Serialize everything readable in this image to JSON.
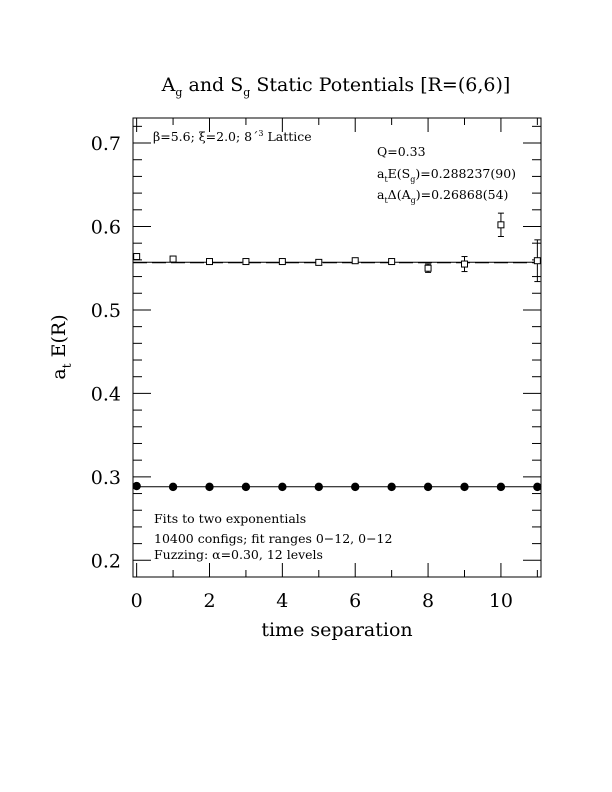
{
  "chart_data": {
    "type": "scatter",
    "title": "A_g and S_g Static Potentials [R=(6,6)]",
    "title_parts": {
      "a": "A",
      "a_sub": "g",
      "mid": " and S",
      "s_sub": "g",
      "rest": " Static Potentials [R=(6,6)]"
    },
    "xlabel": "time separation",
    "ylabel": "a_t E(R)",
    "ylabel_parts": {
      "a": "a",
      "sub": "t",
      "rest": " E(R)"
    },
    "xlim": [
      -0.1,
      11.1
    ],
    "ylim": [
      0.18,
      0.73
    ],
    "xticks": [
      0,
      2,
      4,
      6,
      8,
      10
    ],
    "xtick_labels": [
      "0",
      "2",
      "4",
      "6",
      "8",
      "10"
    ],
    "yticks": [
      0.2,
      0.3,
      0.4,
      0.5,
      0.6,
      0.7
    ],
    "ytick_labels": [
      "0.2",
      "0.3",
      "0.4",
      "0.5",
      "0.6",
      "0.7"
    ],
    "grid": false,
    "series": [
      {
        "marker": "open-square",
        "x": [
          0,
          1,
          2,
          3,
          4,
          5,
          6,
          7,
          8,
          9,
          10,
          11
        ],
        "y": [
          0.564,
          0.561,
          0.558,
          0.558,
          0.558,
          0.557,
          0.559,
          0.558,
          0.55,
          0.555,
          0.602,
          0.559
        ],
        "err": [
          0.002,
          0.002,
          0.002,
          0.002,
          0.002,
          0.002,
          0.003,
          0.003,
          0.005,
          0.009,
          0.014,
          0.025
        ]
      },
      {
        "marker": "filled-circle",
        "x": [
          0,
          1,
          2,
          3,
          4,
          5,
          6,
          7,
          8,
          9,
          10,
          11
        ],
        "y": [
          0.289,
          0.288,
          0.288,
          0.288,
          0.288,
          0.288,
          0.288,
          0.288,
          0.288,
          0.288,
          0.288,
          0.288
        ],
        "err": [
          0.001,
          0.001,
          0.001,
          0.001,
          0.001,
          0.001,
          0.001,
          0.001,
          0.001,
          0.001,
          0.001,
          0.001
        ]
      }
    ],
    "fit_lines": [
      {
        "style": "solid",
        "y": 0.5571
      },
      {
        "style": "dashed",
        "y": 0.5566
      },
      {
        "style": "solid",
        "y": 0.2882
      }
    ],
    "annotations": {
      "lattice": "β=5.6; ξ=2.0; 8´3 Lattice",
      "lattice_parts": {
        "pre": "β=5.6; ξ=2.0; 8´",
        "sup": "3",
        "post": " Lattice"
      },
      "q": "Q=0.33",
      "energy": "a_tE(S_g)=0.288237(90)",
      "energy_parts": {
        "a": "a",
        "a_sub": "t",
        "mid": "E(S",
        "s_sub": "g",
        "post": ")=0.288237(90)"
      },
      "gap": "a_tΔ(A_g)=0.26868(54)",
      "gap_parts": {
        "a": "a",
        "a_sub": "t",
        "mid": "Δ(A",
        "s_sub": "g",
        "post": ")=0.26868(54)"
      },
      "fits": "Fits to two exponentials",
      "configs": "10400 configs; fit ranges 0−12, 0−12",
      "fuzzing": "Fuzzing: α=0.30, 12 levels"
    }
  }
}
